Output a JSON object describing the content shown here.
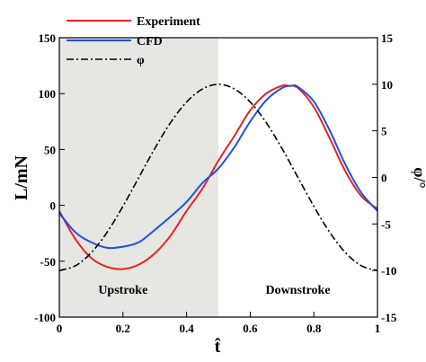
{
  "chart_data": {
    "type": "line",
    "xlabel": "t̂",
    "ylabel_left": "L/mN",
    "ylabel_right": "φ/°",
    "xlim": [
      0,
      1
    ],
    "ylim_left": [
      -100,
      150
    ],
    "ylim_right": [
      -15,
      15
    ],
    "x_ticks": [
      "0",
      "0.2",
      "0.4",
      "0.6",
      "0.8",
      "1"
    ],
    "y_ticks_left": [
      "-100",
      "-50",
      "0",
      "50",
      "100",
      "150"
    ],
    "y_ticks_right": [
      "-15",
      "-10",
      "-5",
      "0",
      "5",
      "10",
      "15"
    ],
    "grid": false,
    "legend_position": "top-left",
    "shaded_region": {
      "x_range": [
        0,
        0.5
      ],
      "color": "#e6e6e2"
    },
    "annotations": [
      {
        "text": "Upstroke",
        "x": 0.2,
        "y": -75
      },
      {
        "text": "Downstroke",
        "x": 0.75,
        "y": -75
      }
    ],
    "colors": {
      "experiment": "#e8231f",
      "cfd": "#1f4fe8",
      "phi": "#000000"
    },
    "series": [
      {
        "name": "Experiment",
        "axis": "left",
        "x": [
          0,
          0.05,
          0.1,
          0.15,
          0.2,
          0.25,
          0.3,
          0.35,
          0.4,
          0.45,
          0.5,
          0.55,
          0.6,
          0.65,
          0.7,
          0.72,
          0.75,
          0.8,
          0.85,
          0.9,
          0.95,
          1.0
        ],
        "values": [
          -5,
          -30,
          -47,
          -55,
          -57,
          -53,
          -43,
          -27,
          -5,
          15,
          40,
          62,
          85,
          100,
          107,
          107,
          105,
          88,
          60,
          30,
          8,
          -3
        ]
      },
      {
        "name": "CFD",
        "axis": "left",
        "x": [
          0,
          0.05,
          0.1,
          0.15,
          0.2,
          0.25,
          0.3,
          0.35,
          0.4,
          0.45,
          0.5,
          0.55,
          0.6,
          0.65,
          0.7,
          0.73,
          0.75,
          0.8,
          0.85,
          0.9,
          0.95,
          1.0
        ],
        "values": [
          -7,
          -24,
          -33,
          -38,
          -37,
          -33,
          -22,
          -10,
          3,
          20,
          33,
          52,
          75,
          94,
          105,
          107,
          106,
          93,
          67,
          36,
          11,
          -5
        ]
      },
      {
        "name": "φ",
        "axis": "right",
        "x": [
          0,
          0.05,
          0.1,
          0.15,
          0.2,
          0.25,
          0.3,
          0.35,
          0.4,
          0.45,
          0.5,
          0.55,
          0.6,
          0.65,
          0.7,
          0.75,
          0.8,
          0.85,
          0.9,
          0.95,
          1.0
        ],
        "values": [
          -10,
          -9.5,
          -8.1,
          -5.9,
          -3.1,
          0,
          3.1,
          5.9,
          8.1,
          9.5,
          10,
          9.5,
          8.1,
          5.9,
          3.1,
          0,
          -3.1,
          -5.9,
          -8.1,
          -9.5,
          -10
        ]
      }
    ]
  }
}
